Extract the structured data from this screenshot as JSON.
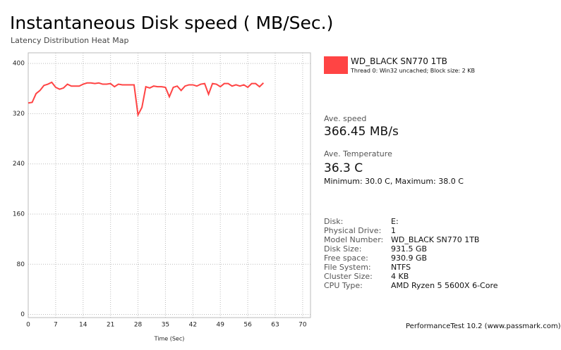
{
  "chart_data": {
    "type": "line",
    "title": "Instantaneous Disk speed ( MB/Sec.)",
    "subtitle": "Latency Distribution Heat Map",
    "xlabel": "Time (Sec)",
    "x": [
      0,
      1,
      2,
      3,
      4,
      5,
      6,
      7,
      8,
      9,
      10,
      11,
      12,
      13,
      14,
      15,
      16,
      17,
      18,
      19,
      20,
      21,
      22,
      23,
      24,
      25,
      26,
      27,
      28,
      29,
      30,
      31,
      32,
      33,
      34,
      35,
      36,
      37,
      38,
      39,
      40,
      41,
      42,
      43,
      44,
      45,
      46,
      47,
      48,
      49,
      50,
      51,
      52,
      53,
      54,
      55,
      56,
      57,
      58,
      59,
      60
    ],
    "series": [
      {
        "name": "WD_BLACK SN770 1TB",
        "color": "#ff4444",
        "values": [
          337,
          338,
          352,
          357,
          365,
          367,
          370,
          362,
          359,
          361,
          367,
          364,
          364,
          364,
          367,
          369,
          369,
          368,
          369,
          367,
          367,
          368,
          363,
          367,
          366,
          366,
          366,
          366,
          318,
          330,
          363,
          361,
          364,
          363,
          363,
          362,
          347,
          362,
          364,
          357,
          364,
          366,
          366,
          364,
          367,
          368,
          351,
          368,
          367,
          363,
          368,
          368,
          364,
          366,
          364,
          366,
          362,
          368,
          368,
          363,
          369
        ]
      }
    ],
    "xlim": [
      0,
      72
    ],
    "xticks": [
      0,
      7,
      14,
      21,
      28,
      35,
      42,
      49,
      56,
      63,
      70
    ],
    "ylim": [
      -5,
      417
    ],
    "yticks": [
      0,
      80,
      160,
      240,
      320,
      400
    ],
    "grid": true
  },
  "panel": {
    "legend_detail": "Thread 0: Win32 uncached; Block size: 2 KB",
    "speed_label": "Ave. speed",
    "speed_value": "366.45 MB/s",
    "temp_label": "Ave. Temperature",
    "temp_value": "36.3 C",
    "temp_range": "Minimum: 30.0 C, Maximum: 38.0 C",
    "info": [
      [
        "Disk:",
        "E:"
      ],
      [
        "Physical Drive:",
        "1"
      ],
      [
        "Model Number:",
        "WD_BLACK SN770 1TB"
      ],
      [
        "Disk Size:",
        "931.5 GB"
      ],
      [
        "Free space:",
        "930.9 GB"
      ],
      [
        "File System:",
        "NTFS"
      ],
      [
        "Cluster Size:",
        "4 KB"
      ],
      [
        "CPU Type:",
        "AMD Ryzen 5 5600X 6-Core"
      ]
    ],
    "footer": "PerformanceTest 10.2 (www.passmark.com)"
  }
}
